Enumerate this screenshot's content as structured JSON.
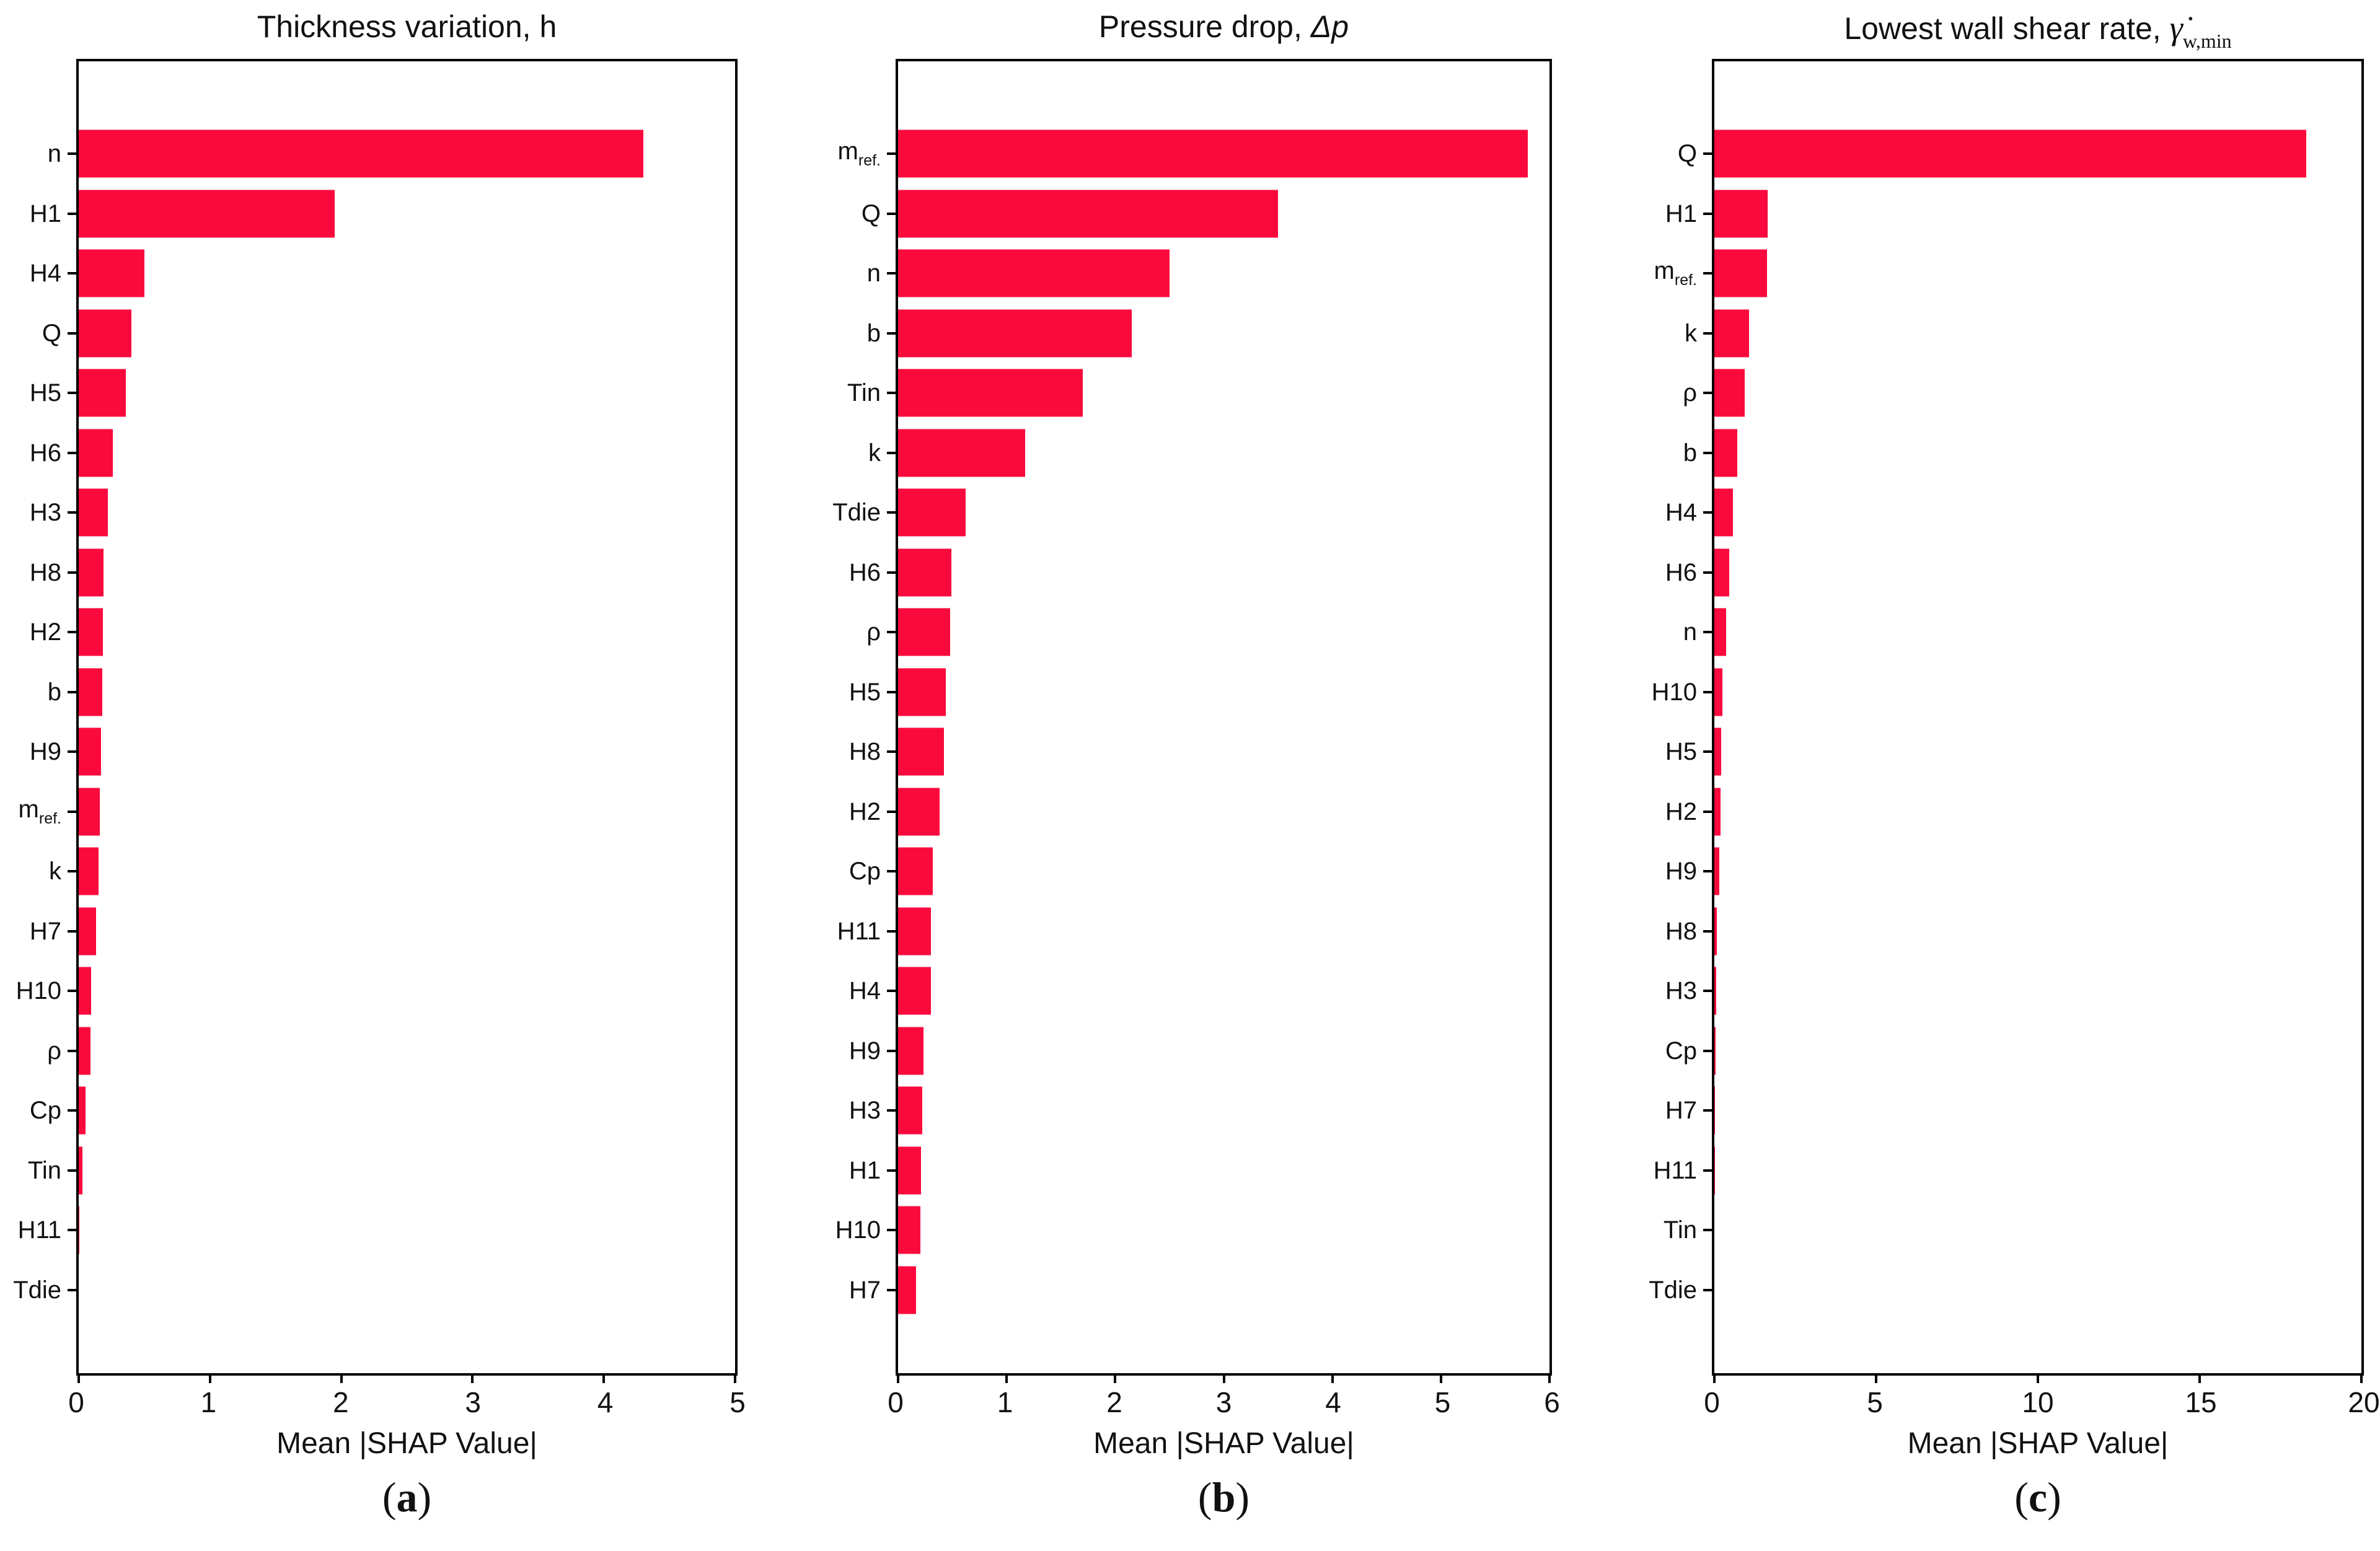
{
  "figure": {
    "background": "#ffffff",
    "bar_color": "#FA0A3C",
    "axis_color": "#000000"
  },
  "chart_data": [
    {
      "type": "bar",
      "orientation": "horizontal",
      "title": {
        "pre": "Thickness variation, h",
        "math": "",
        "sub": ""
      },
      "caption": "(a)",
      "xlabel": "Mean |SHAP Value|",
      "xlim": [
        0,
        5
      ],
      "xticks": [
        0,
        1,
        2,
        3,
        4,
        5
      ],
      "grid": false,
      "legend": "none",
      "bar_color": "#FA0A3C",
      "categories": [
        "n",
        "H1",
        "H4",
        "Q",
        "H5",
        "H6",
        "H3",
        "H8",
        "H2",
        "b",
        "H9",
        "m_ref.",
        "k",
        "H7",
        "H10",
        "ρ",
        "Cp",
        "Tin",
        "H11",
        "Tdie"
      ],
      "values": [
        4.3,
        1.95,
        0.5,
        0.4,
        0.36,
        0.26,
        0.22,
        0.19,
        0.185,
        0.18,
        0.17,
        0.16,
        0.15,
        0.13,
        0.095,
        0.09,
        0.05,
        0.03,
        0.006,
        0
      ]
    },
    {
      "type": "bar",
      "orientation": "horizontal",
      "title": {
        "pre": "Pressure drop, ",
        "math": "Δp",
        "sub": ""
      },
      "caption": "(b)",
      "xlabel": "Mean |SHAP Value|",
      "xlim": [
        0,
        6
      ],
      "xticks": [
        0,
        1,
        2,
        3,
        4,
        5,
        6
      ],
      "grid": false,
      "legend": "none",
      "bar_color": "#FA0A3C",
      "categories": [
        "m_ref.",
        "Q",
        "n",
        "b",
        "Tin",
        "k",
        "Tdie",
        "H6",
        "ρ",
        "H5",
        "H8",
        "H2",
        "Cp",
        "H11",
        "H4",
        "H9",
        "H3",
        "H1",
        "H10",
        "H7"
      ],
      "values": [
        5.8,
        3.5,
        2.5,
        2.15,
        1.7,
        1.17,
        0.62,
        0.49,
        0.48,
        0.44,
        0.42,
        0.38,
        0.32,
        0.3,
        0.3,
        0.235,
        0.22,
        0.21,
        0.205,
        0.165
      ]
    },
    {
      "type": "bar",
      "orientation": "horizontal",
      "title": {
        "pre": "Lowest wall shear rate, ",
        "math": "γ̇",
        "sub": "w,min"
      },
      "caption": "(c)",
      "xlabel": "Mean |SHAP Value|",
      "xlim": [
        0,
        20
      ],
      "xticks": [
        0,
        5,
        10,
        15,
        20
      ],
      "grid": false,
      "legend": "none",
      "bar_color": "#FA0A3C",
      "categories": [
        "Q",
        "H1",
        "m_ref.",
        "k",
        "ρ",
        "b",
        "H4",
        "H6",
        "n",
        "H10",
        "H5",
        "H2",
        "H9",
        "H8",
        "H3",
        "Cp",
        "H7",
        "H11",
        "Tin",
        "Tdie"
      ],
      "values": [
        18.3,
        1.64,
        1.62,
        1.08,
        0.94,
        0.7,
        0.58,
        0.46,
        0.36,
        0.25,
        0.22,
        0.19,
        0.15,
        0.08,
        0.05,
        0.03,
        0.012,
        0.006,
        0,
        0
      ]
    }
  ]
}
